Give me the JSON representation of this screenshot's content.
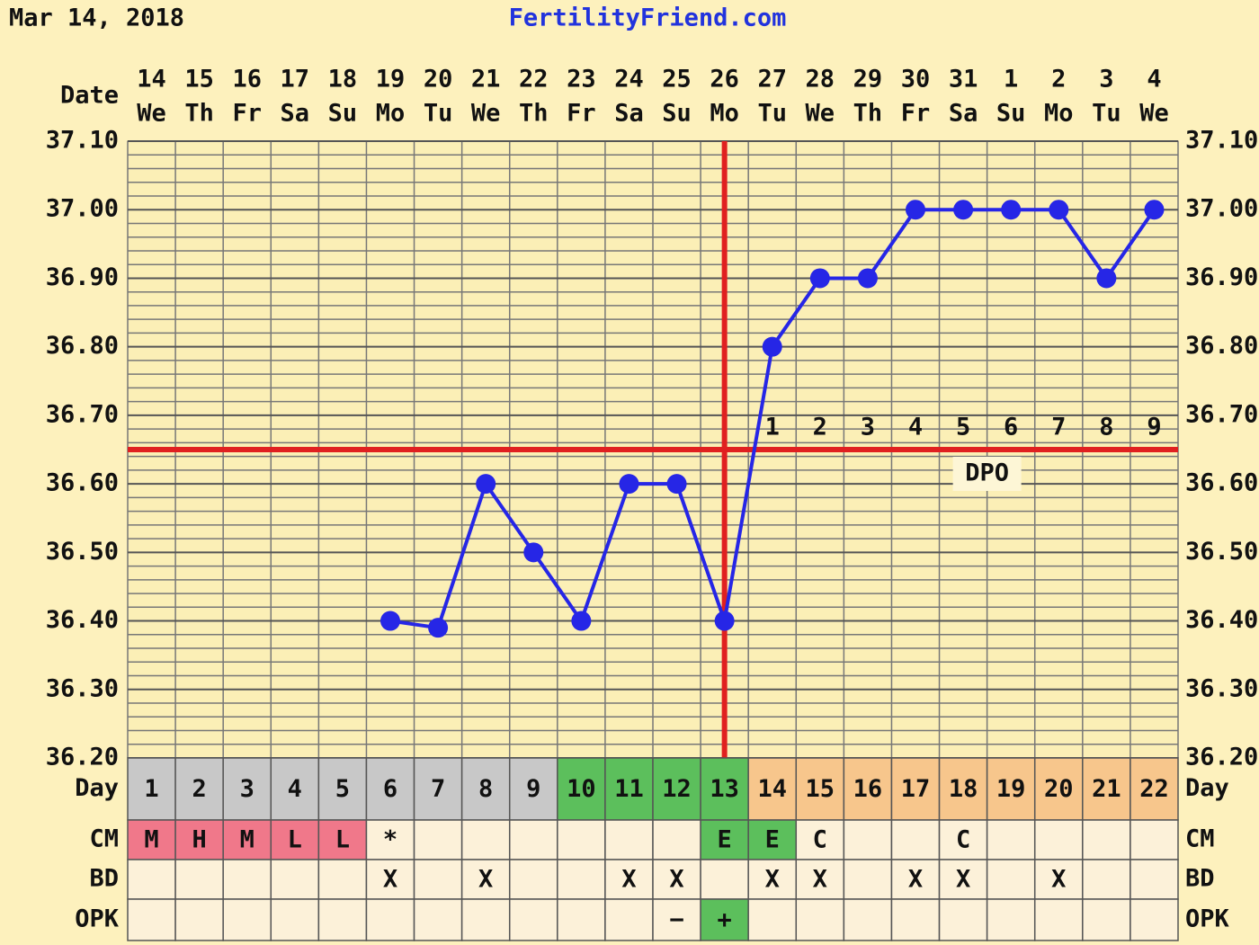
{
  "header": {
    "date": "Mar 14, 2018",
    "site": "FertilityFriend.com"
  },
  "chart_data": {
    "type": "line",
    "x_label": "Date",
    "dates": [
      "14",
      "15",
      "16",
      "17",
      "18",
      "19",
      "20",
      "21",
      "22",
      "23",
      "24",
      "25",
      "26",
      "27",
      "28",
      "29",
      "30",
      "31",
      "1",
      "2",
      "3",
      "4"
    ],
    "weekdays": [
      "We",
      "Th",
      "Fr",
      "Sa",
      "Su",
      "Mo",
      "Tu",
      "We",
      "Th",
      "Fr",
      "Sa",
      "Su",
      "Mo",
      "Tu",
      "We",
      "Th",
      "Fr",
      "Sa",
      "Su",
      "Mo",
      "Tu",
      "We"
    ],
    "values": [
      null,
      null,
      null,
      null,
      null,
      36.4,
      36.39,
      36.6,
      36.5,
      36.4,
      36.6,
      36.6,
      36.4,
      36.8,
      36.9,
      36.9,
      37.0,
      37.0,
      37.0,
      37.0,
      36.9,
      37.0
    ],
    "color": "#2626e6",
    "ylim": [
      36.2,
      37.1
    ],
    "yticks": [
      {
        "value": 36.2,
        "label": "36.20"
      },
      {
        "value": 36.3,
        "label": "36.30"
      },
      {
        "value": 36.4,
        "label": "36.40"
      },
      {
        "value": 36.5,
        "label": "36.50"
      },
      {
        "value": 36.6,
        "label": "36.60"
      },
      {
        "value": 36.7,
        "label": "36.70"
      },
      {
        "value": 36.8,
        "label": "36.80"
      },
      {
        "value": 36.9,
        "label": "36.90"
      },
      {
        "value": 37.0,
        "label": "37.00"
      },
      {
        "value": 37.1,
        "label": "37.10"
      }
    ],
    "yminorticks": [
      36.22,
      36.24,
      36.26,
      36.28,
      36.32,
      36.34,
      36.36,
      36.38,
      36.42,
      36.44,
      36.46,
      36.48,
      36.52,
      36.54,
      36.56,
      36.58,
      36.62,
      36.64,
      36.66,
      36.68,
      36.72,
      36.74,
      36.76,
      36.78,
      36.82,
      36.84,
      36.86,
      36.88,
      36.92,
      36.94,
      36.96,
      36.98,
      37.02,
      37.04,
      37.06,
      37.08
    ],
    "grid": true,
    "coverline": 36.65,
    "ovulation_day": 13,
    "reference_color": "#e02020",
    "dpo": {
      "label": "DPO",
      "values": [
        null,
        null,
        null,
        null,
        null,
        null,
        null,
        null,
        null,
        null,
        null,
        null,
        null,
        1,
        2,
        3,
        4,
        5,
        6,
        7,
        8,
        9
      ]
    },
    "rows": [
      {
        "label": "Day",
        "cells": [
          1,
          2,
          3,
          4,
          5,
          6,
          7,
          8,
          9,
          10,
          11,
          12,
          13,
          14,
          15,
          16,
          17,
          18,
          19,
          20,
          21,
          22
        ],
        "colors": [
          "#c8c8c8",
          "#c8c8c8",
          "#c8c8c8",
          "#c8c8c8",
          "#c8c8c8",
          "#c8c8c8",
          "#c8c8c8",
          "#c8c8c8",
          "#c8c8c8",
          "#5cbf5c",
          "#5cbf5c",
          "#5cbf5c",
          "#5cbf5c",
          "#f7c68c",
          "#f7c68c",
          "#f7c68c",
          "#f7c68c",
          "#f7c68c",
          "#f7c68c",
          "#f7c68c",
          "#f7c68c",
          "#f7c68c"
        ]
      },
      {
        "label": "CM",
        "cells": [
          "M",
          "H",
          "M",
          "L",
          "L",
          "*",
          null,
          null,
          null,
          null,
          null,
          null,
          "E",
          "E",
          "C",
          null,
          null,
          "C",
          null,
          null,
          null,
          null
        ],
        "colors": [
          "#f0788a",
          "#f0788a",
          "#f0788a",
          "#f0788a",
          "#f0788a",
          null,
          null,
          null,
          null,
          null,
          null,
          null,
          "#5cbf5c",
          "#5cbf5c",
          null,
          null,
          null,
          null,
          null,
          null,
          null,
          null
        ]
      },
      {
        "label": "BD",
        "cells": [
          null,
          null,
          null,
          null,
          null,
          "X",
          null,
          "X",
          null,
          null,
          "X",
          "X",
          null,
          "X",
          "X",
          null,
          "X",
          "X",
          null,
          "X",
          null,
          null
        ],
        "colors": [
          null,
          null,
          null,
          null,
          null,
          null,
          null,
          null,
          null,
          null,
          null,
          null,
          null,
          null,
          null,
          null,
          null,
          null,
          null,
          null,
          null,
          null
        ]
      },
      {
        "label": "OPK",
        "cells": [
          null,
          null,
          null,
          null,
          null,
          null,
          null,
          null,
          null,
          null,
          null,
          "−",
          "+",
          null,
          null,
          null,
          null,
          null,
          null,
          null,
          null,
          null
        ],
        "colors": [
          null,
          null,
          null,
          null,
          null,
          null,
          null,
          null,
          null,
          null,
          null,
          null,
          "#5cbf5c",
          null,
          null,
          null,
          null,
          null,
          null,
          null,
          null,
          null
        ]
      }
    ]
  }
}
